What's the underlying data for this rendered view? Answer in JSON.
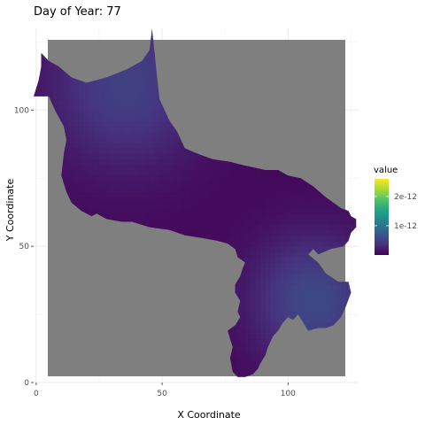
{
  "chart_data": {
    "type": "heatmap",
    "title": "Day of Year: 77",
    "xlabel": "X Coordinate",
    "ylabel": "Y Coordinate",
    "xlim": [
      -1,
      128
    ],
    "ylim": [
      0,
      130
    ],
    "x_ticks": [
      {
        "value": 0,
        "label": "0"
      },
      {
        "value": 50,
        "label": "50"
      },
      {
        "value": 100,
        "label": "100"
      }
    ],
    "y_ticks": [
      {
        "value": 0,
        "label": "0"
      },
      {
        "value": 50,
        "label": "50"
      },
      {
        "value": 100,
        "label": "100"
      }
    ],
    "grid": true,
    "background_color": "#7f7f7f",
    "region_outline": [
      [
        2,
        121
      ],
      [
        5,
        118
      ],
      [
        9,
        116
      ],
      [
        14,
        112
      ],
      [
        20,
        110
      ],
      [
        28,
        112
      ],
      [
        36,
        115
      ],
      [
        42,
        118
      ],
      [
        45,
        122
      ],
      [
        46,
        130
      ],
      [
        47,
        121
      ],
      [
        48,
        112
      ],
      [
        49,
        104
      ],
      [
        51,
        100
      ],
      [
        53,
        96
      ],
      [
        56,
        92
      ],
      [
        59,
        86
      ],
      [
        64,
        84
      ],
      [
        70,
        82
      ],
      [
        77,
        81
      ],
      [
        81,
        80
      ],
      [
        86,
        79
      ],
      [
        91,
        78
      ],
      [
        96,
        78
      ],
      [
        100,
        76
      ],
      [
        105,
        75
      ],
      [
        110,
        72
      ],
      [
        115,
        68
      ],
      [
        118,
        66
      ],
      [
        121,
        64
      ],
      [
        124,
        63
      ],
      [
        125,
        61
      ],
      [
        127,
        60
      ],
      [
        127,
        57
      ],
      [
        125,
        55
      ],
      [
        124,
        52
      ],
      [
        122,
        50
      ],
      [
        117,
        49
      ],
      [
        112,
        47
      ],
      [
        110,
        49
      ],
      [
        108,
        47
      ],
      [
        112,
        44
      ],
      [
        115,
        40
      ],
      [
        120,
        37
      ],
      [
        124,
        37
      ],
      [
        125,
        33
      ],
      [
        123,
        28
      ],
      [
        121,
        24
      ],
      [
        118,
        21
      ],
      [
        115,
        20
      ],
      [
        112,
        20
      ],
      [
        108,
        19
      ],
      [
        106,
        22
      ],
      [
        104,
        25
      ],
      [
        102,
        23
      ],
      [
        100,
        24
      ],
      [
        98,
        22
      ],
      [
        96,
        19
      ],
      [
        94,
        17
      ],
      [
        92,
        13
      ],
      [
        91,
        10
      ],
      [
        89,
        7
      ],
      [
        88,
        5
      ],
      [
        86,
        3
      ],
      [
        83,
        2
      ],
      [
        80,
        2
      ],
      [
        78,
        4
      ],
      [
        77,
        9
      ],
      [
        78,
        13
      ],
      [
        77,
        16
      ],
      [
        76,
        19
      ],
      [
        79,
        21
      ],
      [
        81,
        24
      ],
      [
        80,
        26
      ],
      [
        81,
        30
      ],
      [
        79,
        33
      ],
      [
        79,
        36
      ],
      [
        81,
        39
      ],
      [
        82,
        42
      ],
      [
        83,
        44
      ],
      [
        80,
        46
      ],
      [
        79,
        49
      ],
      [
        76,
        51
      ],
      [
        72,
        52
      ],
      [
        66,
        53
      ],
      [
        59,
        54
      ],
      [
        53,
        56
      ],
      [
        45,
        57
      ],
      [
        38,
        59
      ],
      [
        34,
        59
      ],
      [
        28,
        60
      ],
      [
        24,
        62
      ],
      [
        22,
        61
      ],
      [
        18,
        63
      ],
      [
        14,
        66
      ],
      [
        12,
        70
      ],
      [
        10,
        76
      ],
      [
        11,
        84
      ],
      [
        12,
        89
      ],
      [
        11,
        94
      ],
      [
        8,
        99
      ],
      [
        6,
        103
      ],
      [
        5,
        105
      ],
      [
        1,
        105
      ],
      [
        -1,
        105
      ],
      [
        1,
        111
      ],
      [
        2,
        116
      ],
      [
        2,
        121
      ]
    ],
    "value_field": {
      "hotspots": [
        {
          "x": 36,
          "y": 110,
          "value": 4.4e-13,
          "spread": 22
        },
        {
          "x": 110,
          "y": 30,
          "value": 5.2e-13,
          "spread": 17
        }
      ],
      "base_value": 5e-14
    },
    "colorbar": {
      "title": "value",
      "range": [
        0,
        2.6e-12
      ],
      "ticks": [
        {
          "value": 1e-12,
          "label": "1e-12"
        },
        {
          "value": 2e-12,
          "label": "2e-12"
        }
      ],
      "stops": [
        "#440154",
        "#46337e",
        "#365c8d",
        "#277f8e",
        "#1fa187",
        "#4ac16d",
        "#a0da39",
        "#fde725"
      ],
      "placement": "right"
    }
  }
}
